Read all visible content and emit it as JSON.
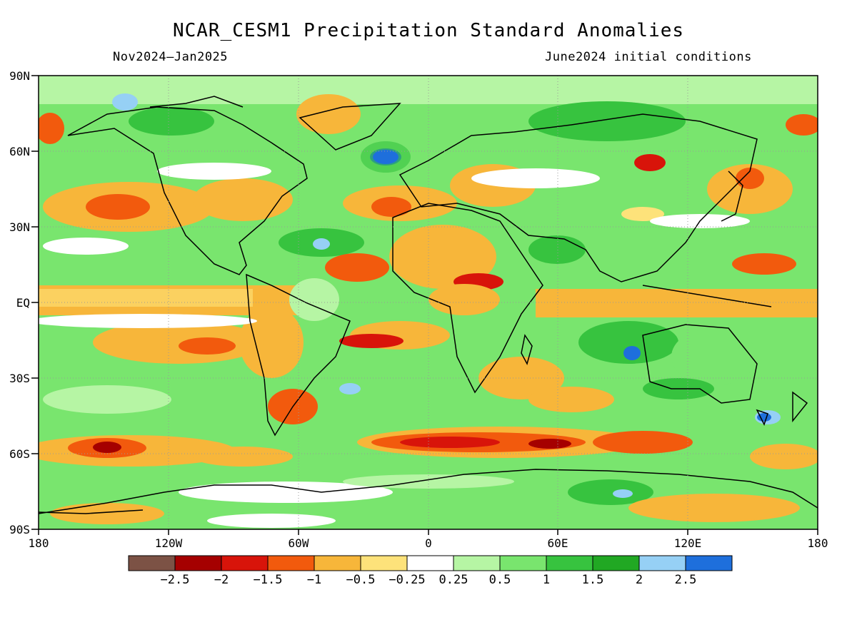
{
  "title": "NCAR_CESM1 Precipitation Standard Anomalies",
  "period": "Nov2024–Jan2025",
  "initial_conditions": "June2024 initial conditions",
  "map": {
    "lat_labels": [
      "90N",
      "60N",
      "30N",
      "EQ",
      "30S",
      "60S",
      "90S"
    ],
    "lon_labels": [
      "180",
      "120W",
      "60W",
      "0",
      "60E",
      "120E",
      "180"
    ],
    "projection": "cylindrical equidistant",
    "grid": "dotted at 30 degree intervals"
  },
  "colorbar": {
    "colors": [
      "#7c5245",
      "#a50000",
      "#d8140a",
      "#f25a0d",
      "#f7b63a",
      "#fde27a",
      "#ffffff",
      "#b6f5a4",
      "#79e56e",
      "#37c33f",
      "#21a823",
      "#96d0f5",
      "#1e6fdc"
    ],
    "labels": [
      "−2.5",
      "−2",
      "−1.5",
      "−1",
      "−0.5",
      "−0.25",
      "0.25",
      "0.5",
      "1",
      "1.5",
      "2",
      "2.5"
    ]
  }
}
